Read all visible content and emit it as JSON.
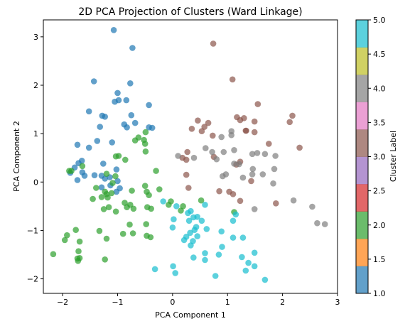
{
  "chart_data": {
    "type": "scatter",
    "title": "2D PCA Projection of Clusters (Ward Linkage)",
    "xlabel": "PCA Component 1",
    "ylabel": "PCA Component 2",
    "xlim": [
      -2.35,
      3.0
    ],
    "ylim": [
      -2.3,
      3.35
    ],
    "xticks": [
      -2,
      -1,
      0,
      1,
      2,
      3
    ],
    "yticks": [
      -2,
      -1,
      0,
      1,
      2,
      3
    ],
    "grid": false,
    "marker_alpha": 0.7,
    "colorbar": {
      "label": "Cluster Label",
      "range": [
        1.0,
        5.0
      ],
      "ticks": [
        1.0,
        1.5,
        2.0,
        2.5,
        3.0,
        3.5,
        4.0,
        4.5,
        5.0
      ],
      "tick_labels": [
        "1.0",
        "1.5",
        "2.0",
        "2.5",
        "3.0",
        "3.5",
        "4.0",
        "4.5",
        "5.0"
      ],
      "bands": [
        {
          "from": 1.0,
          "to": 1.4,
          "color": "#1f77b4"
        },
        {
          "from": 1.4,
          "to": 1.8,
          "color": "#ff7f0e"
        },
        {
          "from": 1.8,
          "to": 2.2,
          "color": "#2ca02c"
        },
        {
          "from": 2.2,
          "to": 2.6,
          "color": "#d62728"
        },
        {
          "from": 2.6,
          "to": 3.0,
          "color": "#9467bd"
        },
        {
          "from": 3.0,
          "to": 3.4,
          "color": "#8c564b"
        },
        {
          "from": 3.4,
          "to": 3.8,
          "color": "#e377c2"
        },
        {
          "from": 3.8,
          "to": 4.2,
          "color": "#7f7f7f"
        },
        {
          "from": 4.2,
          "to": 4.6,
          "color": "#bcbd22"
        },
        {
          "from": 4.6,
          "to": 5.0,
          "color": "#17becf"
        }
      ]
    },
    "series": [
      {
        "cluster": 1,
        "color": "#1f77b4",
        "points": [
          [
            -1.07,
            3.14
          ],
          [
            -0.73,
            2.77
          ],
          [
            -1.43,
            2.08
          ],
          [
            -0.77,
            2.04
          ],
          [
            -1.0,
            1.84
          ],
          [
            -0.98,
            1.69
          ],
          [
            -0.84,
            1.69
          ],
          [
            -1.05,
            1.66
          ],
          [
            -1.52,
            1.46
          ],
          [
            -0.43,
            1.59
          ],
          [
            -1.23,
            1.35
          ],
          [
            -1.28,
            1.37
          ],
          [
            -0.75,
            1.38
          ],
          [
            -1.32,
            1.14
          ],
          [
            -0.88,
            1.19
          ],
          [
            -0.83,
            1.13
          ],
          [
            -0.68,
            1.22
          ],
          [
            -0.43,
            1.13
          ],
          [
            -0.37,
            1.12
          ],
          [
            -1.37,
            0.85
          ],
          [
            -1.1,
            0.82
          ],
          [
            -1.52,
            0.71
          ],
          [
            -1.73,
            0.77
          ],
          [
            -1.26,
            0.38
          ],
          [
            -1.65,
            0.44
          ],
          [
            -1.71,
            0.39
          ],
          [
            -1.02,
            0.26
          ],
          [
            -1.64,
            0.2
          ],
          [
            -1.86,
            0.19
          ],
          [
            -1.78,
            0.3
          ],
          [
            -1.42,
            0.14
          ],
          [
            -1.29,
            0.13
          ],
          [
            -1.6,
            0.13
          ],
          [
            -1.73,
            0.04
          ],
          [
            -1.14,
            0.1
          ],
          [
            -1.23,
            0.07
          ],
          [
            -1.0,
            0.02
          ],
          [
            -1.13,
            -0.07
          ],
          [
            -1.29,
            -0.11
          ],
          [
            -0.96,
            -0.13
          ],
          [
            -1.02,
            -0.2
          ]
        ]
      },
      {
        "cluster": 2,
        "color": "#2ca02c",
        "points": [
          [
            -0.49,
            1.03
          ],
          [
            -0.52,
            0.87
          ],
          [
            -0.62,
            0.92
          ],
          [
            -0.68,
            0.86
          ],
          [
            -0.5,
            0.79
          ],
          [
            -0.49,
            0.63
          ],
          [
            -0.98,
            0.54
          ],
          [
            -1.03,
            0.53
          ],
          [
            -0.86,
            0.46
          ],
          [
            -1.64,
            0.33
          ],
          [
            -1.88,
            0.23
          ],
          [
            -1.84,
            0.23
          ],
          [
            -0.3,
            0.23
          ],
          [
            -1.2,
            0.17
          ],
          [
            -1.04,
            0.12
          ],
          [
            -1.09,
            -0.02
          ],
          [
            -1.39,
            -0.12
          ],
          [
            -1.23,
            -0.2
          ],
          [
            -1.11,
            -0.23
          ],
          [
            -1.2,
            -0.25
          ],
          [
            -0.74,
            -0.18
          ],
          [
            -0.5,
            -0.08
          ],
          [
            -0.47,
            -0.2
          ],
          [
            -0.43,
            -0.27
          ],
          [
            -0.24,
            -0.15
          ],
          [
            -1.29,
            -0.31
          ],
          [
            -1.18,
            -0.32
          ],
          [
            -1.45,
            -0.35
          ],
          [
            -0.03,
            -0.4
          ],
          [
            -0.87,
            -0.43
          ],
          [
            -0.77,
            -0.47
          ],
          [
            -0.71,
            -0.55
          ],
          [
            -0.83,
            -0.52
          ],
          [
            -1.25,
            -0.56
          ],
          [
            -1.16,
            -0.52
          ],
          [
            -0.46,
            -0.52
          ],
          [
            -0.39,
            -0.55
          ],
          [
            -1.03,
            -0.61
          ],
          [
            -0.07,
            -0.47
          ],
          [
            0.19,
            -0.5
          ],
          [
            0.15,
            -0.59
          ],
          [
            -0.78,
            -0.88
          ],
          [
            -0.48,
            -0.87
          ],
          [
            -0.72,
            -1.06
          ],
          [
            -0.9,
            -1.07
          ],
          [
            -1.33,
            -1.01
          ],
          [
            -1.2,
            -1.17
          ],
          [
            -0.47,
            -1.11
          ],
          [
            -0.4,
            -1.14
          ],
          [
            -1.76,
            -0.99
          ],
          [
            -1.92,
            -1.1
          ],
          [
            -1.96,
            -1.2
          ],
          [
            -1.69,
            -1.23
          ],
          [
            -1.71,
            -1.43
          ],
          [
            -1.69,
            -1.57
          ],
          [
            -1.73,
            -1.58
          ],
          [
            -1.72,
            -1.63
          ],
          [
            -2.17,
            -1.49
          ],
          [
            -1.23,
            -1.6
          ],
          [
            0.52,
            -0.38
          ],
          [
            1.12,
            -0.62
          ]
        ]
      },
      {
        "cluster": 3,
        "color": "#8c564b",
        "points": [
          [
            0.74,
            2.86
          ],
          [
            1.09,
            2.12
          ],
          [
            1.55,
            1.61
          ],
          [
            0.46,
            1.27
          ],
          [
            0.58,
            1.14
          ],
          [
            0.65,
            1.22
          ],
          [
            0.53,
            1.05
          ],
          [
            0.35,
            1.1
          ],
          [
            0.73,
            0.96
          ],
          [
            1.17,
            1.34
          ],
          [
            1.23,
            1.28
          ],
          [
            1.3,
            1.32
          ],
          [
            1.49,
            1.25
          ],
          [
            1.33,
            1.06
          ],
          [
            1.34,
            1.06
          ],
          [
            1.49,
            1.03
          ],
          [
            2.18,
            1.37
          ],
          [
            2.13,
            1.24
          ],
          [
            1.75,
            0.79
          ],
          [
            2.31,
            0.71
          ],
          [
            0.27,
            0.62
          ],
          [
            0.18,
            0.5
          ],
          [
            0.25,
            0.46
          ],
          [
            0.75,
            0.52
          ],
          [
            1.23,
            0.42
          ],
          [
            1.16,
            0.36
          ],
          [
            0.25,
            0.15
          ],
          [
            0.29,
            -0.12
          ],
          [
            1.43,
            0.02
          ],
          [
            0.85,
            -0.19
          ],
          [
            1.03,
            -0.2
          ],
          [
            1.1,
            -0.25
          ],
          [
            1.23,
            -0.39
          ],
          [
            1.88,
            -0.44
          ]
        ]
      },
      {
        "cluster": 4,
        "color": "#7f7f7f",
        "points": [
          [
            0.89,
            0.93
          ],
          [
            1.07,
            1.05
          ],
          [
            1.07,
            0.97
          ],
          [
            0.6,
            0.7
          ],
          [
            0.72,
            0.62
          ],
          [
            0.93,
            0.62
          ],
          [
            1.12,
            0.66
          ],
          [
            1.45,
            0.58
          ],
          [
            1.54,
            0.6
          ],
          [
            1.68,
            0.58
          ],
          [
            1.87,
            0.54
          ],
          [
            0.1,
            0.54
          ],
          [
            0.39,
            0.5
          ],
          [
            0.8,
            0.47
          ],
          [
            1.12,
            0.38
          ],
          [
            1.21,
            0.37
          ],
          [
            1.46,
            0.27
          ],
          [
            1.85,
            0.27
          ],
          [
            1.64,
            0.16
          ],
          [
            1.45,
            0.16
          ],
          [
            0.97,
            0.16
          ],
          [
            0.91,
            0.12
          ],
          [
            1.28,
            0.09
          ],
          [
            1.83,
            -0.03
          ],
          [
            2.2,
            -0.38
          ],
          [
            2.54,
            -0.51
          ],
          [
            2.63,
            -0.85
          ],
          [
            2.77,
            -0.87
          ],
          [
            1.49,
            -0.56
          ]
        ]
      },
      {
        "cluster": 5,
        "color": "#17becf",
        "points": [
          [
            -0.17,
            -0.4
          ],
          [
            0.07,
            -0.5
          ],
          [
            0.59,
            -0.47
          ],
          [
            0.33,
            -0.6
          ],
          [
            0.28,
            -0.64
          ],
          [
            0.45,
            -0.72
          ],
          [
            0.38,
            -0.73
          ],
          [
            0.3,
            -0.8
          ],
          [
            0.53,
            -0.8
          ],
          [
            0.02,
            -0.77
          ],
          [
            1.1,
            -0.8
          ],
          [
            1.15,
            -0.67
          ],
          [
            0.43,
            -0.93
          ],
          [
            0.62,
            -0.97
          ],
          [
            0.89,
            -1.02
          ],
          [
            0.4,
            -0.99
          ],
          [
            0.32,
            -1.05
          ],
          [
            0.0,
            -0.94
          ],
          [
            0.25,
            -1.13
          ],
          [
            0.21,
            -1.2
          ],
          [
            0.45,
            -1.12
          ],
          [
            0.37,
            -1.22
          ],
          [
            1.1,
            -1.15
          ],
          [
            1.28,
            -1.15
          ],
          [
            0.33,
            -1.31
          ],
          [
            0.9,
            -1.34
          ],
          [
            0.84,
            -1.5
          ],
          [
            0.59,
            -1.47
          ],
          [
            1.49,
            -1.46
          ],
          [
            1.26,
            -1.55
          ],
          [
            0.38,
            -1.56
          ],
          [
            0.59,
            -1.61
          ],
          [
            -0.32,
            -1.8
          ],
          [
            0.01,
            -1.74
          ],
          [
            0.05,
            -1.88
          ],
          [
            1.38,
            -1.67
          ],
          [
            1.49,
            -1.74
          ],
          [
            1.33,
            -1.83
          ],
          [
            0.78,
            -1.94
          ],
          [
            1.68,
            -2.02
          ]
        ]
      }
    ]
  }
}
